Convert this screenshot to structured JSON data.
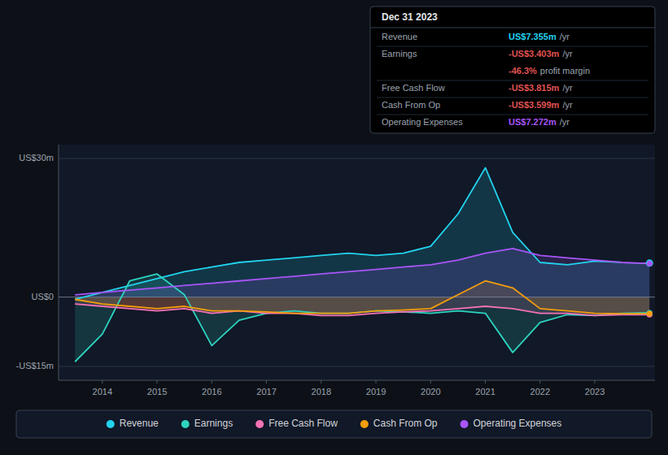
{
  "chart_data": {
    "type": "area",
    "x": [
      2013.5,
      2014,
      2014.5,
      2015,
      2015.5,
      2016,
      2016.5,
      2017,
      2017.5,
      2018,
      2018.5,
      2019,
      2019.5,
      2020,
      2020.5,
      2021,
      2021.5,
      2022,
      2022.5,
      2023,
      2023.5,
      2024
    ],
    "xlim": [
      2013.2,
      2024.1
    ],
    "xticks": [
      2014,
      2015,
      2016,
      2017,
      2018,
      2019,
      2020,
      2021,
      2022,
      2023
    ],
    "ylim": [
      -18,
      33
    ],
    "yticks": [
      {
        "value": -15,
        "label": "-US$15m"
      },
      {
        "value": 0,
        "label": "US$0"
      },
      {
        "value": 30,
        "label": "US$30m"
      }
    ],
    "grid": true,
    "legend": "bottom",
    "series": [
      {
        "name": "Revenue",
        "color": "#22d3ee",
        "values": [
          -0.5,
          1.0,
          2.5,
          4.0,
          5.5,
          6.5,
          7.5,
          8.0,
          8.5,
          9.0,
          9.5,
          9.0,
          9.5,
          11.0,
          18.0,
          28.0,
          14.0,
          7.5,
          7.0,
          7.8,
          7.5,
          7.355
        ]
      },
      {
        "name": "Earnings",
        "color": "#2dd4bf",
        "values": [
          -14.0,
          -8.0,
          3.5,
          5.0,
          0.5,
          -10.5,
          -5.0,
          -3.5,
          -3.0,
          -3.5,
          -3.5,
          -3.0,
          -3.2,
          -3.5,
          -3.0,
          -3.5,
          -12.0,
          -5.5,
          -3.8,
          -4.0,
          -3.5,
          -3.403
        ]
      },
      {
        "name": "Free Cash Flow",
        "color": "#f472b6",
        "values": [
          -1.5,
          -2.0,
          -2.5,
          -3.0,
          -2.5,
          -3.5,
          -3.0,
          -3.5,
          -3.5,
          -4.0,
          -4.0,
          -3.5,
          -3.2,
          -3.0,
          -2.5,
          -2.0,
          -2.5,
          -3.5,
          -3.5,
          -4.0,
          -3.8,
          -3.815
        ]
      },
      {
        "name": "Cash From Op",
        "color": "#f59e0b",
        "values": [
          -0.5,
          -1.5,
          -2.0,
          -2.5,
          -2.0,
          -3.0,
          -3.0,
          -3.2,
          -3.5,
          -3.5,
          -3.5,
          -3.0,
          -2.8,
          -2.5,
          0.5,
          3.5,
          2.0,
          -2.5,
          -3.0,
          -3.5,
          -3.6,
          -3.599
        ]
      },
      {
        "name": "Operating Expenses",
        "color": "#a855f7",
        "values": [
          0.5,
          1.0,
          1.5,
          2.0,
          2.5,
          3.0,
          3.5,
          4.0,
          4.5,
          5.0,
          5.5,
          6.0,
          6.5,
          7.0,
          8.0,
          9.5,
          10.5,
          9.0,
          8.5,
          8.0,
          7.5,
          7.272
        ]
      }
    ],
    "annotations": {
      "title": "Dec 31 2023",
      "rows": [
        {
          "label": "Revenue",
          "text": "US$7.355m",
          "note": "/yr",
          "color": "#22d3ee"
        },
        {
          "label": "Earnings",
          "text": "-US$3.403m",
          "note": "/yr",
          "color": "#e05252"
        },
        {
          "text": "-46.3%",
          "note": "profit margin",
          "color": "#e05252"
        },
        {
          "label": "Free Cash Flow",
          "text": "-US$3.815m",
          "note": "/yr",
          "color": "#e05252"
        },
        {
          "label": "Cash From Op",
          "text": "-US$3.599m",
          "note": "/yr",
          "color": "#e05252"
        },
        {
          "label": "Operating Expenses",
          "text": "US$7.272m",
          "note": "/yr",
          "color": "#a855f7"
        }
      ]
    }
  }
}
